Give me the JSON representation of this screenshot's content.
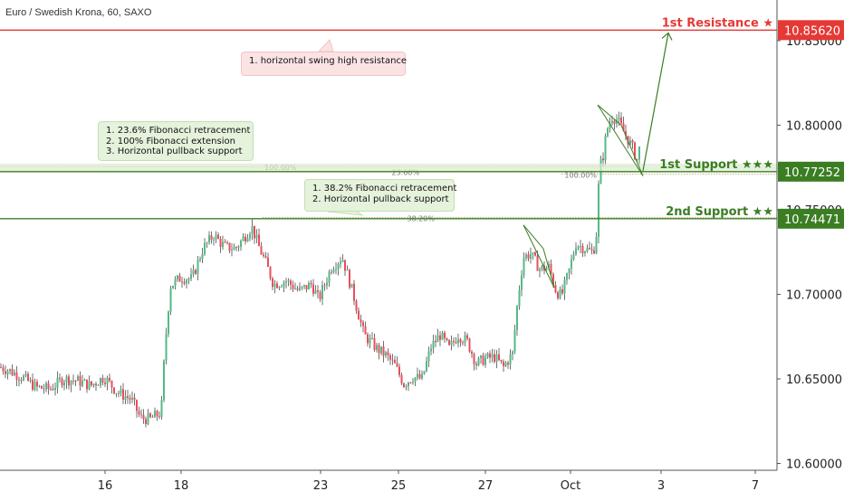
{
  "symbol_text": "Euro / Swedish Krona, 60, SAXO",
  "colors": {
    "up": "#53b987",
    "down": "#eb4d5c",
    "wick": "#333333",
    "resistance": "#e53935",
    "support": "#3b7d23",
    "grid": "#eeeeee",
    "fib": "#b0a060"
  },
  "chart_data": {
    "type": "candlestick",
    "y_ticks": [
      "10.60000",
      "10.65000",
      "10.70000",
      "10.75000",
      "10.80000",
      "10.85000"
    ],
    "y_ticks_values": [
      10.6,
      10.65,
      10.7,
      10.75,
      10.8,
      10.85
    ],
    "ylim": [
      10.596,
      10.874
    ],
    "x_ticks": [
      "16",
      "18",
      "23",
      "25",
      "27",
      "Oct",
      "3",
      "7"
    ],
    "levels": [
      {
        "name": "1st Resistance ★",
        "price": 10.8562,
        "price_label": "10.85620",
        "role": "resistance"
      },
      {
        "name": "1st Support ★★★",
        "price": 10.77252,
        "price_label": "10.77252",
        "role": "support"
      },
      {
        "name": "2nd Support ★★",
        "price": 10.74471,
        "price_label": "10.74471",
        "role": "support"
      }
    ],
    "fib_labels": [
      {
        "text": "100.00%",
        "price": 10.7755
      },
      {
        "text": "23.60%",
        "price": 10.7728
      },
      {
        "text": "100.00%",
        "price": 10.771
      },
      {
        "text": "38.20%",
        "price": 10.7455
      }
    ],
    "annotations": {
      "resistance_note": [
        "1. horizontal swing high resistance"
      ],
      "support1_note": [
        "1. 23.6% Fibonacci retracement",
        "2. 100% Fibonacci extension",
        "3. Horizontal pullback support"
      ],
      "support2_note": [
        "1. 38.2% Fibonacci retracement",
        "2. Horizontal pullback support"
      ]
    },
    "close_path": [
      [
        0,
        10.657
      ],
      [
        10,
        10.655
      ],
      [
        25,
        10.651
      ],
      [
        40,
        10.645
      ],
      [
        55,
        10.644
      ],
      [
        70,
        10.65
      ],
      [
        85,
        10.649
      ],
      [
        100,
        10.646
      ],
      [
        115,
        10.651
      ],
      [
        130,
        10.642
      ],
      [
        145,
        10.638
      ],
      [
        155,
        10.627
      ],
      [
        165,
        10.626
      ],
      [
        178,
        10.63
      ],
      [
        182,
        10.668
      ],
      [
        188,
        10.705
      ],
      [
        200,
        10.71
      ],
      [
        212,
        10.709
      ],
      [
        224,
        10.727
      ],
      [
        236,
        10.735
      ],
      [
        248,
        10.728
      ],
      [
        260,
        10.727
      ],
      [
        270,
        10.734
      ],
      [
        278,
        10.74
      ],
      [
        286,
        10.728
      ],
      [
        294,
        10.718
      ],
      [
        302,
        10.706
      ],
      [
        316,
        10.708
      ],
      [
        330,
        10.702
      ],
      [
        344,
        10.706
      ],
      [
        352,
        10.697
      ],
      [
        366,
        10.716
      ],
      [
        378,
        10.722
      ],
      [
        390,
        10.7
      ],
      [
        402,
        10.676
      ],
      [
        416,
        10.668
      ],
      [
        426,
        10.664
      ],
      [
        436,
        10.658
      ],
      [
        446,
        10.647
      ],
      [
        456,
        10.651
      ],
      [
        466,
        10.65
      ],
      [
        476,
        10.669
      ],
      [
        486,
        10.676
      ],
      [
        496,
        10.668
      ],
      [
        506,
        10.676
      ],
      [
        516,
        10.672
      ],
      [
        526,
        10.659
      ],
      [
        536,
        10.662
      ],
      [
        546,
        10.663
      ],
      [
        556,
        10.657
      ],
      [
        566,
        10.665
      ],
      [
        572,
        10.698
      ],
      [
        578,
        10.722
      ],
      [
        586,
        10.724
      ],
      [
        596,
        10.715
      ],
      [
        606,
        10.716
      ],
      [
        614,
        10.702
      ],
      [
        620,
        10.699
      ],
      [
        628,
        10.713
      ],
      [
        636,
        10.73
      ],
      [
        646,
        10.727
      ],
      [
        654,
        10.725
      ],
      [
        658,
        10.73
      ],
      [
        662,
        10.775
      ],
      [
        666,
        10.782
      ],
      [
        670,
        10.797
      ],
      [
        676,
        10.805
      ],
      [
        682,
        10.803
      ],
      [
        690,
        10.795
      ],
      [
        698,
        10.787
      ],
      [
        704,
        10.779
      ],
      [
        708,
        10.793
      ]
    ]
  }
}
